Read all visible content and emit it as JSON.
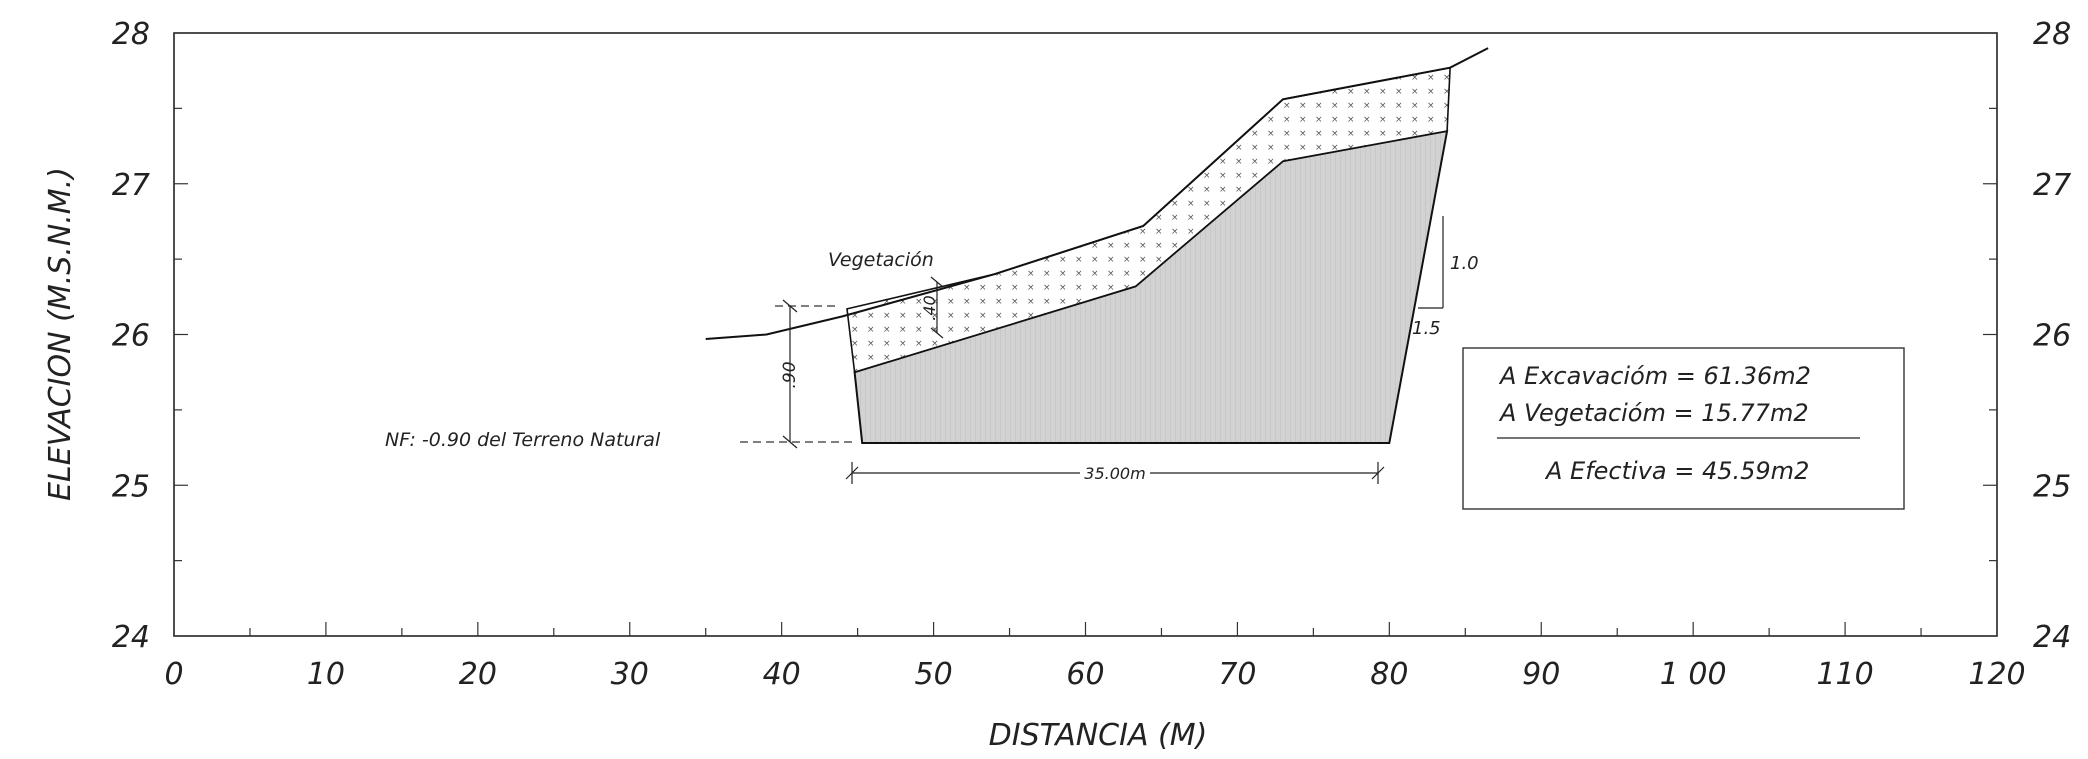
{
  "axes": {
    "xlabel": "DISTANCIA (M)",
    "ylabel": "ELEVACION (M.S.N.M.)",
    "x_ticks": [
      "0",
      "10",
      "20",
      "30",
      "40",
      "50",
      "60",
      "70",
      "80",
      "90",
      "1 00",
      "110",
      "120"
    ],
    "y_ticks": [
      "24",
      "25",
      "26",
      "27",
      "28"
    ],
    "xlim": [
      0,
      120
    ],
    "ylim": [
      24,
      28
    ]
  },
  "profile": {
    "terrain": [
      [
        35,
        25.97
      ],
      [
        39,
        26.0
      ],
      [
        44,
        26.12
      ],
      [
        54,
        26.4
      ],
      [
        63.8,
        26.72
      ],
      [
        73,
        27.56
      ],
      [
        84,
        27.77
      ],
      [
        86.5,
        27.9
      ]
    ],
    "excavation_polygon": [
      [
        44.8,
        25.75
      ],
      [
        63.3,
        26.32
      ],
      [
        73,
        27.15
      ],
      [
        83.8,
        27.35
      ],
      [
        80,
        25.28
      ],
      [
        45.3,
        25.28
      ]
    ],
    "vegetation_polygon": [
      [
        44.3,
        26.17
      ],
      [
        54,
        26.4
      ],
      [
        63.8,
        26.72
      ],
      [
        73,
        27.56
      ],
      [
        84,
        27.77
      ],
      [
        83.8,
        27.35
      ],
      [
        73,
        27.15
      ],
      [
        63.3,
        26.32
      ],
      [
        44.8,
        25.75
      ]
    ],
    "water_table_y": 25.28
  },
  "labels": {
    "vegetation": "Vegetación",
    "layer_thickness": ".40",
    "depth": ".90",
    "water_table": "NF: -0.90 del Terreno Natural",
    "width": "35.00m",
    "slope_rise": "1.0",
    "slope_run": "1.5"
  },
  "areas": {
    "excavacion": "A Excavaciόm = 61.36m2",
    "vegetacion": "A Vegetaciόm = 15.77m2",
    "efectiva": "A Efectiva = 45.59m2"
  }
}
